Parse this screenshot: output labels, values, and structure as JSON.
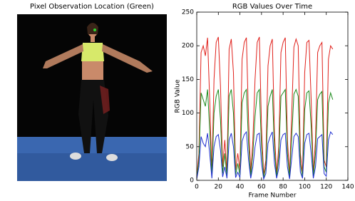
{
  "image_panel": {
    "title": "Pixel Observation Location (Green)"
  },
  "chart_data": {
    "type": "line",
    "title": "RGB Values Over Time",
    "x_label": "Frame Number",
    "y_label": "RGB Value",
    "x": [
      0,
      2,
      4,
      6,
      8,
      10,
      12,
      14,
      16,
      18,
      20,
      22,
      24,
      26,
      28,
      30,
      32,
      34,
      36,
      38,
      40,
      42,
      44,
      46,
      48,
      50,
      52,
      54,
      56,
      58,
      60,
      62,
      64,
      66,
      68,
      70,
      72,
      74,
      76,
      78,
      80,
      82,
      84,
      86,
      88,
      90,
      92,
      94,
      96,
      98,
      100,
      102,
      104,
      106,
      108,
      110,
      112,
      114,
      116,
      118,
      120,
      122,
      124,
      126
    ],
    "series": [
      {
        "color": "#e0201b",
        "values": [
          5,
          40,
          190,
          200,
          185,
          212,
          120,
          10,
          150,
          205,
          213,
          140,
          20,
          60,
          10,
          195,
          210,
          160,
          15,
          40,
          15,
          180,
          205,
          212,
          90,
          10,
          60,
          150,
          205,
          213,
          80,
          8,
          30,
          170,
          200,
          210,
          70,
          10,
          50,
          190,
          205,
          212,
          60,
          8,
          100,
          198,
          210,
          200,
          40,
          10,
          160,
          205,
          208,
          120,
          10,
          60,
          190,
          200,
          205,
          30,
          20,
          180,
          200,
          195
        ]
      },
      {
        "color": "#1a8a1a",
        "values": [
          3,
          30,
          130,
          120,
          110,
          135,
          75,
          5,
          100,
          125,
          135,
          90,
          10,
          40,
          5,
          125,
          135,
          100,
          8,
          25,
          8,
          115,
          130,
          135,
          55,
          5,
          40,
          95,
          130,
          135,
          50,
          4,
          20,
          110,
          125,
          135,
          45,
          5,
          35,
          125,
          130,
          135,
          40,
          4,
          65,
          128,
          135,
          125,
          25,
          5,
          105,
          130,
          133,
          80,
          5,
          40,
          120,
          128,
          132,
          20,
          12,
          115,
          130,
          120
        ]
      },
      {
        "color": "#1f2fd0",
        "values": [
          2,
          20,
          65,
          55,
          50,
          70,
          40,
          3,
          50,
          65,
          68,
          45,
          5,
          20,
          3,
          60,
          70,
          50,
          4,
          12,
          4,
          58,
          68,
          72,
          30,
          3,
          20,
          50,
          68,
          70,
          25,
          2,
          10,
          55,
          65,
          72,
          25,
          3,
          18,
          60,
          68,
          70,
          20,
          2,
          33,
          65,
          70,
          65,
          12,
          3,
          55,
          68,
          70,
          40,
          3,
          20,
          62,
          65,
          68,
          10,
          6,
          60,
          72,
          68
        ]
      }
    ],
    "xlim": [
      0,
      140
    ],
    "xticks": [
      0,
      20,
      40,
      60,
      80,
      100,
      120,
      140
    ],
    "ylim": [
      0,
      250
    ],
    "yticks": [
      0,
      50,
      100,
      150,
      200,
      250
    ]
  }
}
